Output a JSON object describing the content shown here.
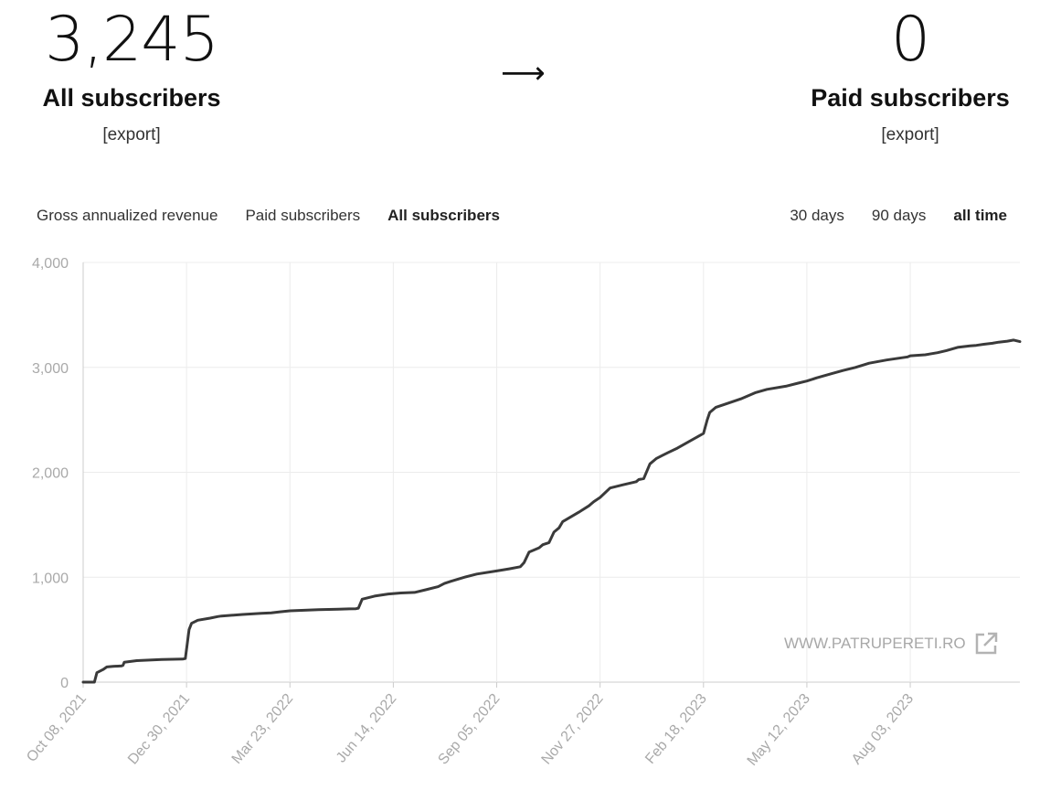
{
  "stats": {
    "all": {
      "value": "3,245",
      "label": "All subscribers",
      "export": "[export]"
    },
    "arrow": "⟶",
    "paid": {
      "value": "0",
      "label": "Paid subscribers",
      "export": "[export]"
    }
  },
  "tabs": [
    {
      "label": "Gross annualized revenue",
      "active": false
    },
    {
      "label": "Paid subscribers",
      "active": false
    },
    {
      "label": "All subscribers",
      "active": true
    }
  ],
  "ranges": [
    {
      "label": "30 days",
      "active": false
    },
    {
      "label": "90 days",
      "active": false
    },
    {
      "label": "all time",
      "active": true
    }
  ],
  "watermark": {
    "text": "WWW.PATRUPERETI.RO",
    "icon": "external-link-icon"
  },
  "colors": {
    "line": "#3a3a3a",
    "grid": "#ececec",
    "axis": "#cccccc",
    "tick": "#a9a9a9"
  },
  "chart_data": {
    "type": "line",
    "title": "",
    "xlabel": "",
    "ylabel": "",
    "x_axis": "date",
    "ylim": [
      0,
      4000
    ],
    "y_ticks": [
      0,
      1000,
      2000,
      3000,
      4000
    ],
    "y_tick_labels": [
      "0",
      "1,000",
      "2,000",
      "3,000",
      "4,000"
    ],
    "x_range": [
      "2021-10-08",
      "2023-10-30"
    ],
    "x_ticks": [
      "2021-10-08",
      "2021-12-30",
      "2022-03-23",
      "2022-06-14",
      "2022-09-05",
      "2022-11-27",
      "2023-02-18",
      "2023-05-12",
      "2023-08-03"
    ],
    "x_tick_labels": [
      "Oct 08, 2021",
      "Dec 30, 2021",
      "Mar 23, 2022",
      "Jun 14, 2022",
      "Sep 05, 2022",
      "Nov 27, 2022",
      "Feb 18, 2023",
      "May 12, 2023",
      "Aug 03, 2023"
    ],
    "grid": true,
    "legend": "none",
    "series": [
      {
        "x": [
          "2021-10-08",
          "2021-10-17",
          "2021-10-19",
          "2021-10-24",
          "2021-10-27",
          "2021-11-01",
          "2021-11-08",
          "2021-11-09",
          "2021-11-10",
          "2021-11-20",
          "2021-12-10",
          "2021-12-27",
          "2021-12-29",
          "2022-01-01",
          "2022-01-03",
          "2022-01-08",
          "2022-01-18",
          "2022-01-24",
          "2022-01-27",
          "2022-02-13",
          "2022-02-28",
          "2022-03-08",
          "2022-03-15",
          "2022-03-23",
          "2022-04-15",
          "2022-05-01",
          "2022-05-15",
          "2022-05-17",
          "2022-05-20",
          "2022-05-30",
          "2022-06-10",
          "2022-06-20",
          "2022-07-01",
          "2022-07-10",
          "2022-07-20",
          "2022-07-25",
          "2022-07-30",
          "2022-08-10",
          "2022-08-20",
          "2022-09-05",
          "2022-09-15",
          "2022-09-24",
          "2022-09-27",
          "2022-10-01",
          "2022-10-09",
          "2022-10-12",
          "2022-10-17",
          "2022-10-21",
          "2022-10-25",
          "2022-10-28",
          "2022-11-10",
          "2022-11-18",
          "2022-11-20",
          "2022-11-22",
          "2022-11-27",
          "2022-12-05",
          "2022-12-15",
          "2022-12-26",
          "2022-12-28",
          "2023-01-01",
          "2023-01-06",
          "2023-01-11",
          "2023-01-16",
          "2023-01-21",
          "2023-01-28",
          "2023-02-15",
          "2023-02-18",
          "2023-02-21",
          "2023-02-23",
          "2023-02-28",
          "2023-03-10",
          "2023-03-20",
          "2023-04-01",
          "2023-04-10",
          "2023-04-25",
          "2023-05-05",
          "2023-05-12",
          "2023-05-20",
          "2023-06-01",
          "2023-06-10",
          "2023-06-20",
          "2023-07-01",
          "2023-07-15",
          "2023-08-01",
          "2023-08-03",
          "2023-08-15",
          "2023-08-25",
          "2023-09-01",
          "2023-09-10",
          "2023-09-20",
          "2023-09-25",
          "2023-10-01",
          "2023-10-08",
          "2023-10-13",
          "2023-10-20",
          "2023-10-25",
          "2023-10-30"
        ],
        "y": [
          0,
          0,
          90,
          120,
          145,
          150,
          155,
          160,
          190,
          205,
          215,
          220,
          225,
          500,
          560,
          590,
          610,
          625,
          630,
          645,
          655,
          660,
          670,
          680,
          690,
          695,
          700,
          705,
          790,
          820,
          840,
          850,
          855,
          880,
          910,
          940,
          960,
          1000,
          1030,
          1060,
          1080,
          1100,
          1140,
          1240,
          1280,
          1310,
          1330,
          1430,
          1470,
          1530,
          1620,
          1680,
          1700,
          1720,
          1760,
          1850,
          1880,
          1910,
          1930,
          1940,
          2080,
          2130,
          2160,
          2190,
          2230,
          2350,
          2370,
          2500,
          2570,
          2620,
          2660,
          2700,
          2760,
          2790,
          2820,
          2850,
          2870,
          2900,
          2940,
          2970,
          3000,
          3040,
          3070,
          3100,
          3110,
          3120,
          3140,
          3160,
          3190,
          3205,
          3210,
          3220,
          3230,
          3240,
          3250,
          3260,
          3245
        ]
      }
    ]
  }
}
